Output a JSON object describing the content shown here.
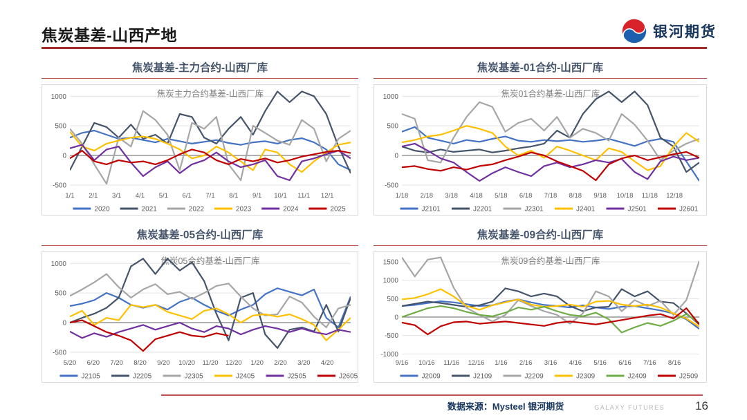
{
  "header": {
    "title": "焦炭基差-山西产地",
    "brand": "银河期货"
  },
  "footer": {
    "source": "数据来源：Mysteel 银河期货",
    "brand_small": "GALAXY FUTURES",
    "page_number": "16"
  },
  "colors": {
    "accent_red": "#A42D25",
    "panel_underline": "#C0504D",
    "title_slate": "#44546A",
    "logo_blue": "#1C5FAC",
    "logo_red": "#D8232A",
    "grid_line": "#e2e2e2",
    "zero_line": "#7f7f7f",
    "tick_text": "#595959",
    "inner_title_text": "#7f7f7f"
  },
  "chart_data": [
    {
      "type": "line",
      "panel_title": "焦炭基差-主力合约-山西厂库",
      "title": "焦炭主力合约基差-山西厂库",
      "categories": [
        "1/1",
        "2/1",
        "3/1",
        "4/1",
        "5/1",
        "6/1",
        "7/1",
        "8/1",
        "9/1",
        "10/1",
        "11/1",
        "12/1"
      ],
      "ylim": [
        -560,
        1120
      ],
      "yticks": [
        1000,
        500,
        0,
        -500
      ],
      "legend_position": "bottom",
      "grid": true,
      "series": [
        {
          "name": "2020",
          "color": "#4472C4",
          "values": [
            300,
            380,
            420,
            350,
            280,
            300,
            260,
            220,
            280,
            240,
            200,
            230,
            260,
            210,
            180,
            220,
            240,
            200,
            260,
            290,
            220,
            100,
            -150,
            -250
          ]
        },
        {
          "name": "2021",
          "color": "#44546A",
          "values": [
            -250,
            150,
            550,
            480,
            300,
            520,
            280,
            350,
            200,
            700,
            650,
            300,
            200,
            450,
            650,
            350,
            750,
            1080,
            900,
            1080,
            1000,
            700,
            150,
            -300
          ]
        },
        {
          "name": "2022",
          "color": "#A6A6A6",
          "values": [
            450,
            200,
            -150,
            -480,
            300,
            150,
            750,
            600,
            350,
            -250,
            550,
            450,
            650,
            -150,
            -420,
            500,
            380,
            250,
            180,
            600,
            450,
            -100,
            280,
            420
          ]
        },
        {
          "name": "2023",
          "color": "#FFC000",
          "values": [
            400,
            150,
            80,
            200,
            250,
            300,
            320,
            280,
            200,
            100,
            -50,
            0,
            150,
            50,
            -100,
            -250,
            100,
            50,
            -150,
            -280,
            -100,
            50,
            180,
            220
          ]
        },
        {
          "name": "2024",
          "color": "#7030A0",
          "values": [
            120,
            180,
            -80,
            100,
            150,
            -120,
            -350,
            -200,
            -100,
            -300,
            -150,
            -80,
            50,
            -100,
            -200,
            -150,
            -80,
            -350,
            -420,
            -100,
            -50,
            20,
            80,
            -50
          ]
        },
        {
          "name": "2025",
          "color": "#C00000",
          "values": [
            -50,
            80,
            -100,
            -150,
            -80,
            -120,
            -100,
            -150,
            -80,
            20,
            100,
            50,
            -80,
            -150,
            -60,
            -100,
            -50,
            -120,
            -80,
            -20,
            20,
            60,
            80,
            40
          ]
        }
      ]
    },
    {
      "type": "line",
      "panel_title": "焦炭基差-01合约-山西厂库",
      "title": "焦炭01合约基差-山西厂库",
      "categories": [
        "1/18",
        "2/18",
        "3/18",
        "4/18",
        "5/18",
        "6/18",
        "7/18",
        "8/18",
        "9/18",
        "10/18",
        "11/18",
        "12/18"
      ],
      "ylim": [
        -560,
        1120
      ],
      "yticks": [
        1000,
        500,
        0,
        -500
      ],
      "legend_position": "bottom",
      "grid": true,
      "series": [
        {
          "name": "J2101",
          "color": "#4472C4",
          "values": [
            400,
            480,
            300,
            250,
            200,
            260,
            230,
            280,
            320,
            250,
            230,
            260,
            240,
            260,
            230,
            250,
            280,
            220,
            160,
            240,
            280,
            230,
            -100,
            -430
          ]
        },
        {
          "name": "J2201",
          "color": "#44546A",
          "values": [
            150,
            80,
            50,
            100,
            60,
            80,
            100,
            50,
            80,
            120,
            150,
            200,
            420,
            300,
            700,
            950,
            1080,
            900,
            1080,
            850,
            300,
            150,
            -280,
            -120
          ]
        },
        {
          "name": "J2301",
          "color": "#A6A6A6",
          "values": [
            700,
            620,
            -80,
            -120,
            300,
            650,
            900,
            820,
            400,
            550,
            620,
            420,
            650,
            300,
            450,
            380,
            250,
            700,
            520,
            250,
            -80,
            80,
            200,
            280
          ]
        },
        {
          "name": "J2401",
          "color": "#FFC000",
          "values": [
            220,
            260,
            320,
            350,
            420,
            500,
            450,
            380,
            150,
            0,
            80,
            -40,
            150,
            80,
            0,
            -80,
            120,
            60,
            -100,
            -250,
            -180,
            150,
            380,
            230
          ]
        },
        {
          "name": "J2501",
          "color": "#7030A0",
          "values": [
            150,
            200,
            80,
            -50,
            -120,
            -280,
            -430,
            -300,
            -200,
            -280,
            -350,
            -180,
            -120,
            -200,
            -150,
            -80,
            -120,
            -60,
            -280,
            -400,
            -100,
            -20,
            -80,
            -40
          ]
        },
        {
          "name": "J2601",
          "color": "#C00000",
          "values": [
            -200,
            -180,
            -230,
            -260,
            -200,
            -240,
            -180,
            -150,
            -80,
            -20,
            50,
            0,
            -100,
            -180,
            -260,
            -420,
            -150,
            -50,
            0,
            -80,
            -30,
            20,
            60,
            -40
          ]
        }
      ]
    },
    {
      "type": "line",
      "panel_title": "焦炭基差-05合约-山西厂库",
      "title": "焦炭05合约基差-山西厂库",
      "categories": [
        "5/20",
        "6/20",
        "7/20",
        "8/20",
        "9/20",
        "10/20",
        "11/20",
        "12/20",
        "1/20",
        "2/20",
        "3/20",
        "4/20"
      ],
      "ylim": [
        -560,
        1120
      ],
      "yticks": [
        1000,
        500,
        0,
        -500
      ],
      "legend_position": "bottom",
      "grid": true,
      "series": [
        {
          "name": "J2105",
          "color": "#4472C4",
          "values": [
            280,
            320,
            380,
            500,
            420,
            300,
            250,
            300,
            220,
            350,
            420,
            300,
            200,
            120,
            220,
            300,
            480,
            580,
            520,
            460,
            560,
            80,
            -80,
            440
          ]
        },
        {
          "name": "J2205",
          "color": "#44546A",
          "values": [
            0,
            80,
            150,
            250,
            420,
            950,
            1080,
            820,
            1080,
            880,
            1020,
            700,
            150,
            -300,
            420,
            500,
            -200,
            -430,
            -120,
            -80,
            -150,
            300,
            -150,
            420
          ]
        },
        {
          "name": "J2305",
          "color": "#A6A6A6",
          "values": [
            450,
            560,
            680,
            820,
            600,
            420,
            560,
            650,
            480,
            520,
            400,
            500,
            620,
            660,
            440,
            240,
            120,
            140,
            440,
            340,
            100,
            -80,
            240,
            300
          ]
        },
        {
          "name": "J2405",
          "color": "#FFC000",
          "values": [
            100,
            200,
            -40,
            80,
            40,
            300,
            260,
            300,
            180,
            120,
            60,
            200,
            240,
            140,
            0,
            120,
            140,
            100,
            140,
            60,
            -40,
            -300,
            -120,
            80
          ]
        },
        {
          "name": "J2505",
          "color": "#7030A0",
          "values": [
            -150,
            -260,
            -180,
            -240,
            -160,
            -100,
            -40,
            -120,
            -60,
            0,
            -100,
            -160,
            -60,
            -100,
            -200,
            -120,
            -60,
            -100,
            -160,
            -100,
            -160,
            -200,
            -120,
            -160
          ]
        },
        {
          "name": "J2605",
          "color": "#C00000",
          "values": [
            0,
            40,
            -60,
            -160,
            -220,
            -300,
            -480,
            -280,
            -220,
            -160,
            -220,
            -240,
            -180,
            -220,
            null,
            null,
            null,
            null,
            null,
            null,
            null,
            null,
            null,
            null
          ]
        }
      ]
    },
    {
      "type": "line",
      "panel_title": "焦炭基差-09合约-山西厂库",
      "title": "焦炭09合约基差-山西厂库",
      "categories": [
        "9/16",
        "10/16",
        "11/16",
        "12/16",
        "1/16",
        "2/16",
        "3/16",
        "4/16",
        "5/16",
        "6/16",
        "7/16",
        "8/16"
      ],
      "ylim": [
        -1050,
        1650
      ],
      "yticks": [
        1500,
        1000,
        500,
        0,
        -500,
        -1000
      ],
      "legend_position": "bottom",
      "grid": true,
      "series": [
        {
          "name": "J2009",
          "color": "#4472C4",
          "values": [
            300,
            330,
            380,
            430,
            400,
            350,
            300,
            320,
            420,
            480,
            400,
            330,
            300,
            260,
            320,
            260,
            220,
            280,
            300,
            240,
            180,
            100,
            -60,
            -320
          ]
        },
        {
          "name": "J2109",
          "color": "#44546A",
          "values": [
            300,
            360,
            420,
            380,
            330,
            280,
            320,
            420,
            780,
            700,
            560,
            640,
            560,
            300,
            160,
            260,
            280,
            760,
            560,
            700,
            420,
            380,
            100,
            -200
          ]
        },
        {
          "name": "J2209",
          "color": "#A6A6A6",
          "values": [
            1620,
            1100,
            1560,
            1620,
            800,
            250,
            60,
            -120,
            60,
            460,
            300,
            160,
            60,
            -180,
            100,
            700,
            560,
            160,
            460,
            300,
            440,
            60,
            460,
            1520
          ]
        },
        {
          "name": "J2309",
          "color": "#FFC000",
          "values": [
            480,
            520,
            620,
            760,
            560,
            300,
            200,
            320,
            400,
            480,
            340,
            280,
            300,
            340,
            280,
            420,
            440,
            340,
            300,
            340,
            260,
            100,
            -40,
            -260
          ]
        },
        {
          "name": "J2409",
          "color": "#70AD47",
          "values": [
            0,
            120,
            240,
            300,
            240,
            140,
            60,
            20,
            120,
            260,
            200,
            280,
            160,
            60,
            20,
            120,
            -60,
            -420,
            -280,
            -160,
            -240,
            -100,
            80,
            -160
          ]
        },
        {
          "name": "J2509",
          "color": "#C00000",
          "values": [
            -150,
            -220,
            -470,
            -250,
            -140,
            -120,
            -180,
            -150,
            -120,
            -160,
            -200,
            -240,
            -160,
            -120,
            -160,
            -200,
            -140,
            -80,
            -20,
            40,
            80,
            -40,
            240,
            -200
          ]
        }
      ]
    }
  ]
}
